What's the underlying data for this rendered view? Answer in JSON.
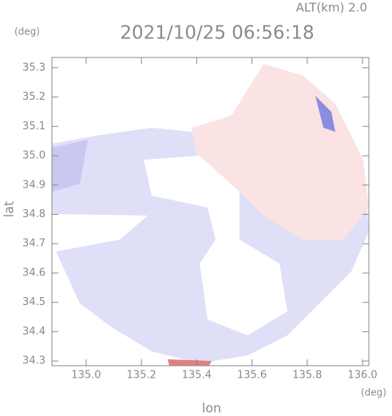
{
  "chart_data": {
    "type": "map",
    "title": "2021/10/25 06:56:18",
    "subtitle": "ALT(km) 2.0",
    "x_label": "lon",
    "y_label": "lat",
    "x_unit": "(deg)",
    "y_unit": "(deg)",
    "xlim": [
      134.876,
      136.023
    ],
    "ylim": [
      34.284,
      35.335
    ],
    "xticks": [
      {
        "value": 135.0,
        "label": "135.0"
      },
      135.2,
      135.4,
      135.6,
      135.8,
      {
        "value": 136.0,
        "label": "136.0"
      }
    ],
    "yticks": [
      34.3,
      34.4,
      34.5,
      34.6,
      34.7,
      34.8,
      34.9,
      {
        "value": 35.0,
        "label": "35.0"
      },
      35.1,
      35.2,
      35.3
    ]
  }
}
